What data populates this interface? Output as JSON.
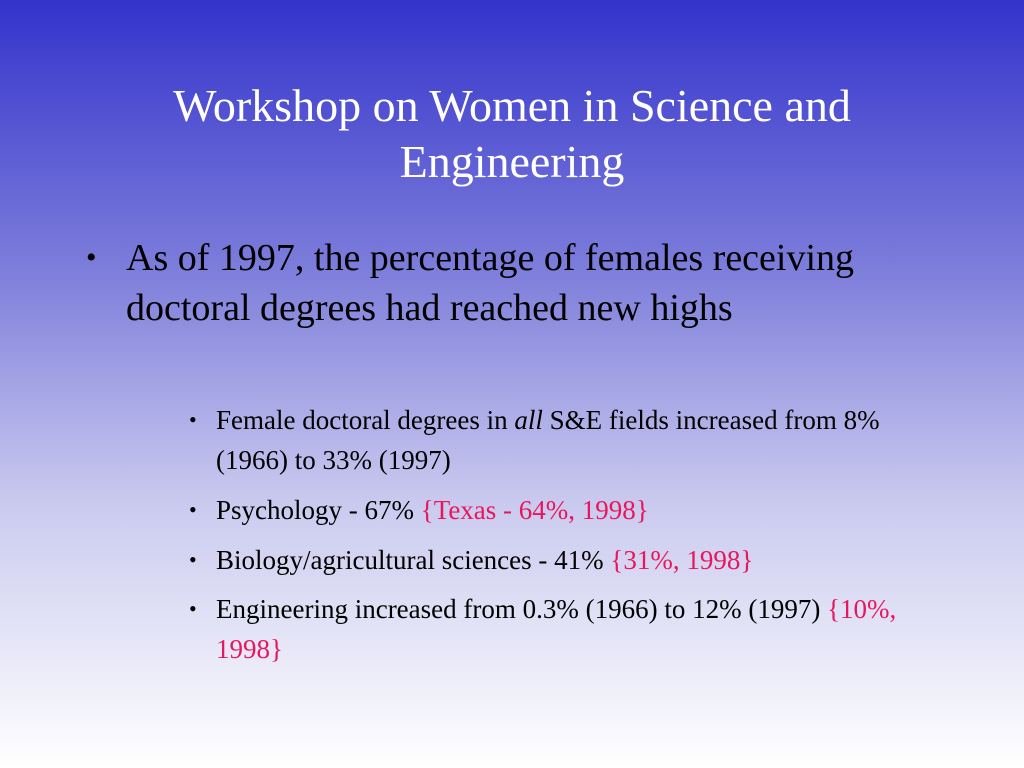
{
  "slide": {
    "title": "Workshop on Women in Science and Engineering",
    "bullet_glyph": "•",
    "main_bullet": "As of 1997, the percentage of females receiving doctoral degrees had reached new highs",
    "sub_bullets": [
      {
        "before": "Female doctoral degrees in ",
        "emphasis": "all",
        "after": " S&E fields increased from 8% (1966) to 33% (1997)"
      },
      {
        "text": "Psychology - 67%  ",
        "note": "{Texas - 64%, 1998}"
      },
      {
        "text": "Biology/agricultural sciences - 41% ",
        "note": "{31%, 1998}"
      },
      {
        "text": "Engineering increased from 0.3% (1966) to 12% (1997)  ",
        "note": "{10%, 1998}"
      }
    ]
  },
  "colors": {
    "background_top": "#3333cc",
    "background_bottom": "#ffffff",
    "title": "#ffffff",
    "text": "#000000",
    "note": "#e8175d"
  }
}
